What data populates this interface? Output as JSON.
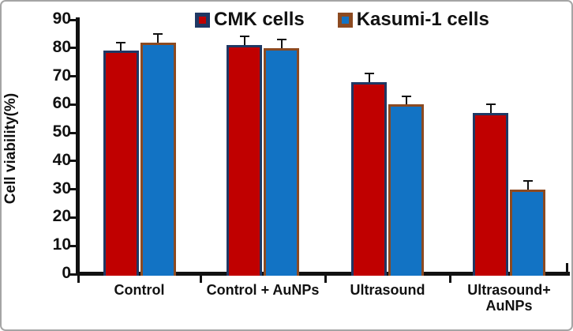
{
  "chart_data": {
    "type": "bar",
    "title": "",
    "xlabel": "",
    "ylabel": "Cell viability(%)",
    "ylim": [
      0,
      90
    ],
    "yticks": [
      0,
      10,
      20,
      30,
      40,
      50,
      60,
      70,
      80,
      90
    ],
    "grid": false,
    "legend_position": "top",
    "categories": [
      "Control",
      "Control + AuNPs",
      "Ultrasound",
      "Ultrasound+\nAuNPs"
    ],
    "series": [
      {
        "name": "CMK cells",
        "color": "#C00000",
        "border_color": "#1F3864",
        "values": [
          79,
          81,
          68,
          57
        ],
        "errors": [
          3,
          3,
          3,
          3
        ]
      },
      {
        "name": "Kasumi-1 cells",
        "color": "#1273C4",
        "border_color": "#8C4A21",
        "values": [
          82,
          80,
          60,
          30
        ],
        "errors": [
          3,
          3,
          3,
          3
        ]
      }
    ],
    "colors": {
      "axis": "#111111",
      "text": "#111111",
      "frame_border": "#A5A5A5",
      "background": "#FFFFFF"
    }
  }
}
